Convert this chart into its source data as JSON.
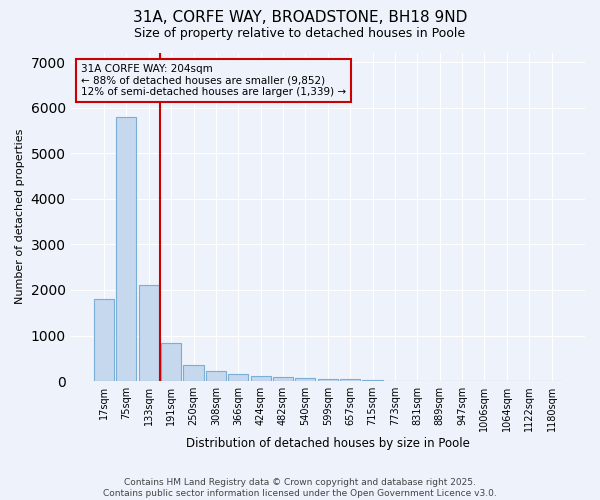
{
  "title1": "31A, CORFE WAY, BROADSTONE, BH18 9ND",
  "title2": "Size of property relative to detached houses in Poole",
  "xlabel": "Distribution of detached houses by size in Poole",
  "ylabel": "Number of detached properties",
  "categories": [
    "17sqm",
    "75sqm",
    "133sqm",
    "191sqm",
    "250sqm",
    "308sqm",
    "366sqm",
    "424sqm",
    "482sqm",
    "540sqm",
    "599sqm",
    "657sqm",
    "715sqm",
    "773sqm",
    "831sqm",
    "889sqm",
    "947sqm",
    "1006sqm",
    "1064sqm",
    "1122sqm",
    "1180sqm"
  ],
  "values": [
    1800,
    5800,
    2100,
    830,
    360,
    220,
    160,
    110,
    90,
    75,
    55,
    40,
    25,
    8,
    5,
    4,
    3,
    2,
    2,
    1,
    1
  ],
  "bar_color": "#c5d8ee",
  "bar_edge_color": "#7baed4",
  "vline_color": "#cc0000",
  "vline_x_index": 3,
  "annotation_text": "31A CORFE WAY: 204sqm\n← 88% of detached houses are smaller (9,852)\n12% of semi-detached houses are larger (1,339) →",
  "annotation_box_color": "#cc0000",
  "background_color": "#edf2fb",
  "plot_bg_color": "#edf2fb",
  "grid_color": "#ffffff",
  "ylim": [
    0,
    7000
  ],
  "yticks": [
    0,
    1000,
    2000,
    3000,
    4000,
    5000,
    6000,
    7000
  ],
  "footer1": "Contains HM Land Registry data © Crown copyright and database right 2025.",
  "footer2": "Contains public sector information licensed under the Open Government Licence v3.0.",
  "title_fontsize": 11,
  "subtitle_fontsize": 9,
  "ylabel_fontsize": 8,
  "xlabel_fontsize": 8.5,
  "tick_fontsize": 7,
  "annot_fontsize": 7.5,
  "footer_fontsize": 6.5
}
